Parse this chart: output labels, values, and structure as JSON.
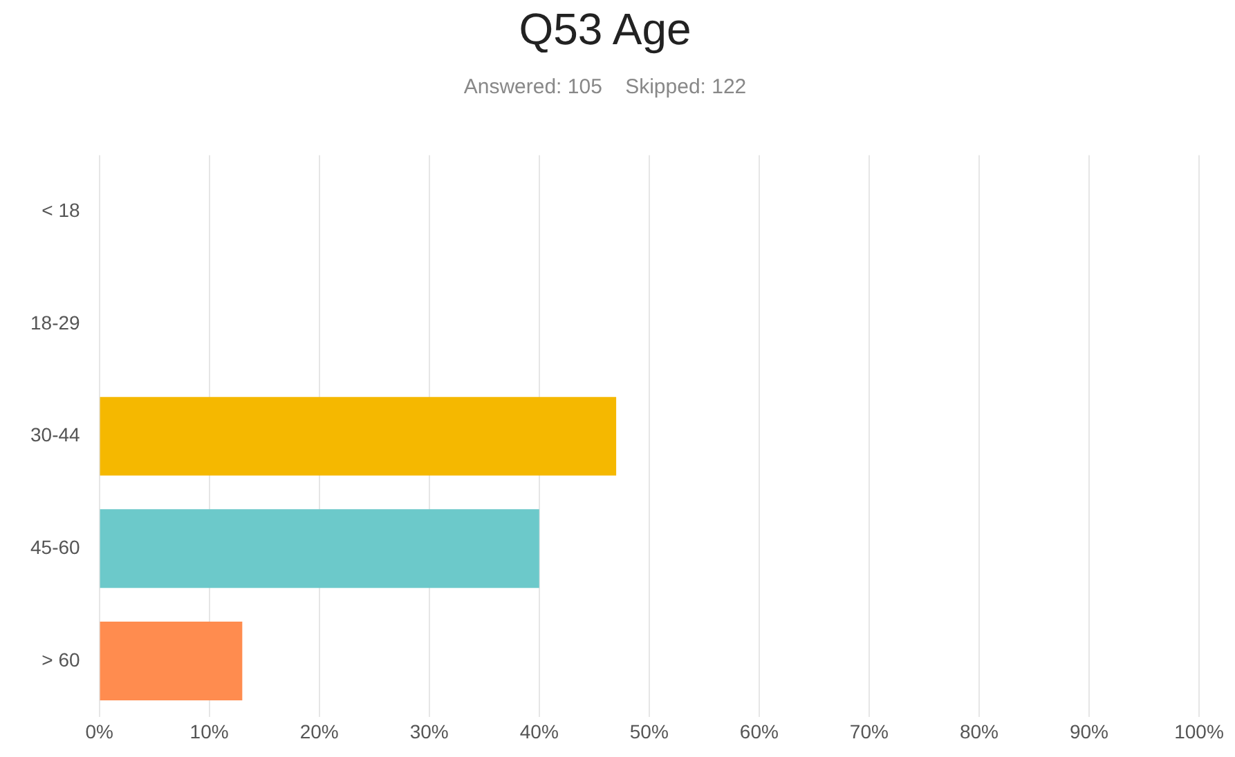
{
  "chart_data": {
    "type": "bar",
    "orientation": "horizontal",
    "title": "Q53 Age",
    "subtitle": "Answered: 105    Skipped: 122",
    "categories": [
      "< 18",
      "18-29",
      "30-44",
      "45-60",
      "> 60"
    ],
    "values": [
      0,
      0,
      47,
      40,
      13
    ],
    "colors": [
      "#f5b800",
      "#6cc9ca",
      "#f5b800",
      "#6cc9ca",
      "#ff8c4f"
    ],
    "xlim": [
      0,
      100
    ],
    "xticks": [
      {
        "value": 0,
        "label": "0%"
      },
      {
        "value": 10,
        "label": "10%"
      },
      {
        "value": 20,
        "label": "20%"
      },
      {
        "value": 30,
        "label": "30%"
      },
      {
        "value": 40,
        "label": "40%"
      },
      {
        "value": 50,
        "label": "50%"
      },
      {
        "value": 60,
        "label": "60%"
      },
      {
        "value": 70,
        "label": "70%"
      },
      {
        "value": 80,
        "label": "80%"
      },
      {
        "value": 90,
        "label": "90%"
      },
      {
        "value": 100,
        "label": "100%"
      }
    ],
    "grid": "x",
    "legend": false
  }
}
